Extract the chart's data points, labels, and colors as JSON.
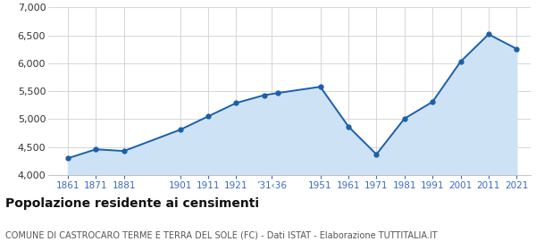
{
  "years": [
    1861,
    1871,
    1881,
    1901,
    1911,
    1921,
    1931,
    1936,
    1951,
    1961,
    1971,
    1981,
    1991,
    2001,
    2011,
    2021
  ],
  "values": [
    4300,
    4460,
    4430,
    4810,
    5050,
    5290,
    5430,
    5470,
    5580,
    4870,
    4370,
    5010,
    5310,
    6030,
    6520,
    6260
  ],
  "x_tick_positions": [
    1861,
    1871,
    1881,
    1901,
    1911,
    1921,
    1933.5,
    1951,
    1961,
    1971,
    1981,
    1991,
    2001,
    2011,
    2021
  ],
  "x_tick_labels": [
    "1861",
    "1871",
    "1881",
    "1901",
    "1911",
    "1921",
    "’31‹36",
    "1951",
    "1961",
    "1971",
    "1981",
    "1991",
    "2001",
    "2011",
    "2021"
  ],
  "xlim": [
    1854,
    2026
  ],
  "ylim": [
    4000,
    7000
  ],
  "yticks": [
    4000,
    4500,
    5000,
    5500,
    6000,
    6500,
    7000
  ],
  "ytick_labels": [
    "4,000",
    "4,500",
    "5,000",
    "5,500",
    "6,000",
    "6,500",
    "7,000"
  ],
  "line_color": "#1b5faa",
  "fill_color": "#cde3f5",
  "marker_color": "#1b5faa",
  "grid_color": "#d0d0d0",
  "bg_color": "#ffffff",
  "title": "Popolazione residente ai censimenti",
  "subtitle": "COMUNE DI CASTROCARO TERME E TERRA DEL SOLE (FC) - Dati ISTAT - Elaborazione TUTTITALIA.IT",
  "title_fontsize": 10,
  "subtitle_fontsize": 7,
  "xtick_fontsize": 7.5,
  "ytick_fontsize": 8,
  "title_color": "#111111",
  "subtitle_color": "#555555",
  "xtick_color": "#3a6bbf"
}
